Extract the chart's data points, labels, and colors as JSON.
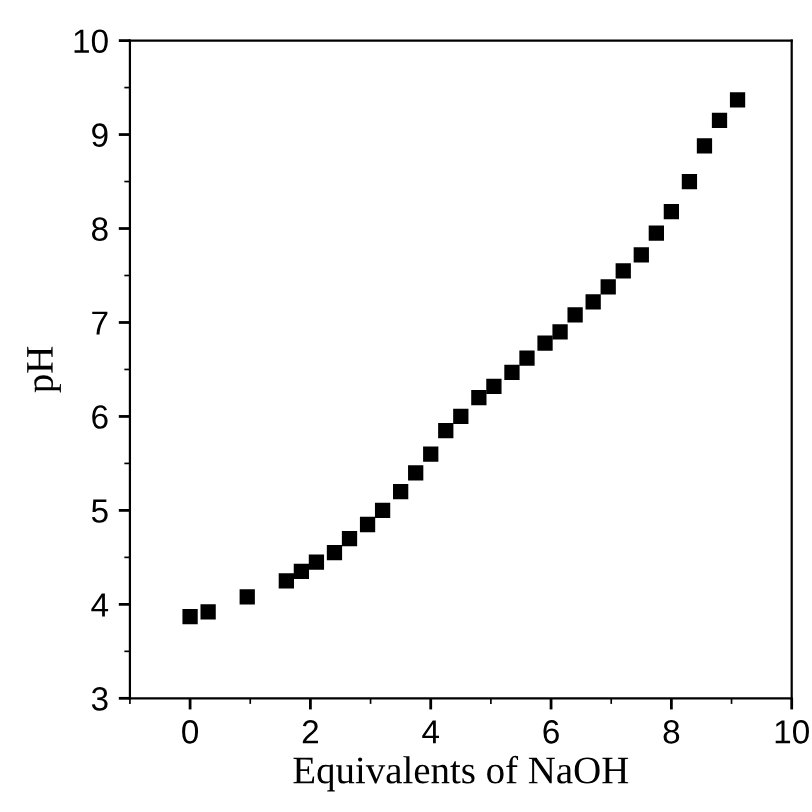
{
  "chart_data": {
    "type": "scatter",
    "xlabel": "Equivalents of NaOH",
    "ylabel": "pH",
    "x": [
      0,
      0.3,
      0.95,
      1.6,
      1.85,
      2.1,
      2.4,
      2.65,
      2.95,
      3.2,
      3.5,
      3.75,
      4.0,
      4.25,
      4.5,
      4.8,
      5.05,
      5.35,
      5.6,
      5.9,
      6.15,
      6.4,
      6.7,
      6.95,
      7.2,
      7.5,
      7.75,
      8.0,
      8.3,
      8.55,
      8.8,
      9.1
    ],
    "values": [
      3.87,
      3.92,
      4.08,
      4.25,
      4.35,
      4.45,
      4.55,
      4.7,
      4.85,
      5.0,
      5.2,
      5.4,
      5.6,
      5.85,
      6.0,
      6.2,
      6.32,
      6.47,
      6.62,
      6.78,
      6.9,
      7.08,
      7.22,
      7.38,
      7.55,
      7.72,
      7.95,
      8.18,
      8.5,
      8.88,
      9.15,
      9.37
    ],
    "color": "#000000",
    "marker": "square",
    "xlim": [
      -1,
      10
    ],
    "xticks": [
      0,
      2,
      4,
      6,
      8,
      10
    ],
    "ylim": [
      3,
      10
    ],
    "yticks": [
      3,
      4,
      5,
      6,
      7,
      8,
      9,
      10
    ],
    "grid": false,
    "legend": false
  }
}
